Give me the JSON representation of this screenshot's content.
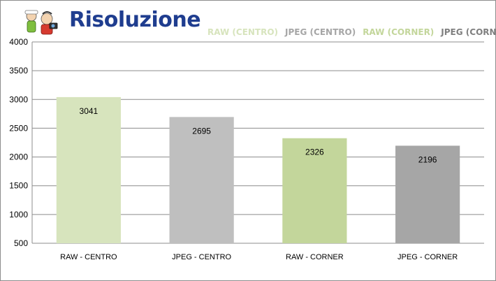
{
  "chart_data": {
    "type": "bar",
    "title": "Risoluzione",
    "categories": [
      "RAW - CENTRO",
      "JPEG - CENTRO",
      "RAW - CORNER",
      "JPEG - CORNER"
    ],
    "values": [
      3041,
      2695,
      2326,
      2196
    ],
    "bar_colors": [
      "#d7e4bd",
      "#bfbfbf",
      "#c3d69b",
      "#a6a6a6"
    ],
    "legend": [
      {
        "label": "RAW (CENTRO)",
        "color": "#d7e4bd"
      },
      {
        "label": "JPEG (CENTRO)",
        "color": "#a6a6a6"
      },
      {
        "label": "RAW (CORNER)",
        "color": "#c3d69b"
      },
      {
        "label": "JPEG (CORNER)",
        "color": "#7f7f7f"
      }
    ],
    "legend_position": "top-right",
    "ylim": [
      500,
      4000
    ],
    "yticks": [
      500,
      1000,
      1500,
      2000,
      2500,
      3000,
      3500,
      4000
    ],
    "grid": true,
    "xlabel": "",
    "ylabel": ""
  }
}
